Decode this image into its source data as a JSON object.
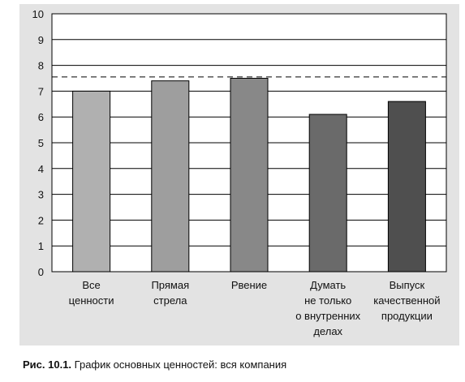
{
  "chart_data": {
    "type": "bar",
    "categories": [
      [
        "Все",
        "ценности"
      ],
      [
        "Прямая",
        "стрела"
      ],
      [
        "Рвение"
      ],
      [
        "Думать",
        "не только",
        "о внутренних",
        "делах"
      ],
      [
        "Выпуск",
        "качественной",
        "продукции"
      ]
    ],
    "values": [
      7.0,
      7.4,
      7.5,
      6.1,
      6.6
    ],
    "bar_colors": [
      "#b0b0b0",
      "#9e9e9e",
      "#888888",
      "#6a6a6a",
      "#4f4f4f"
    ],
    "ylim": [
      0,
      10
    ],
    "yticks": [
      0,
      1,
      2,
      3,
      4,
      5,
      6,
      7,
      8,
      9,
      10
    ],
    "grid": true,
    "reference_line": 7.55,
    "title": "",
    "xlabel": "",
    "ylabel": ""
  },
  "caption": {
    "label": "Рис. 10.1.",
    "text": "График основных ценностей: вся компания"
  }
}
